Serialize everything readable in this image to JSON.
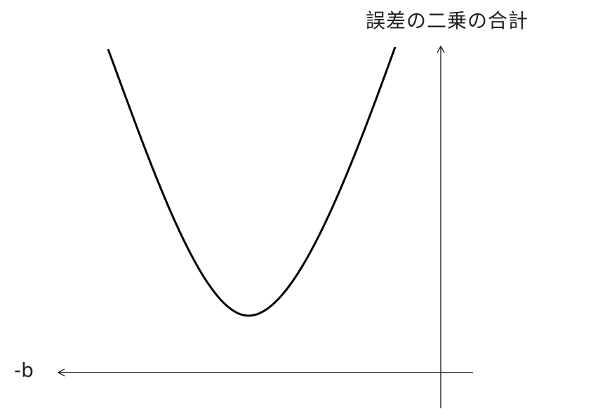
{
  "diagram": {
    "y_axis_label": "誤差の二乗の合計",
    "x_axis_label": "-b",
    "curve": {
      "shape": "parabola",
      "opens": "up",
      "stroke_color": "#000000"
    },
    "axis_color": "#000000"
  }
}
